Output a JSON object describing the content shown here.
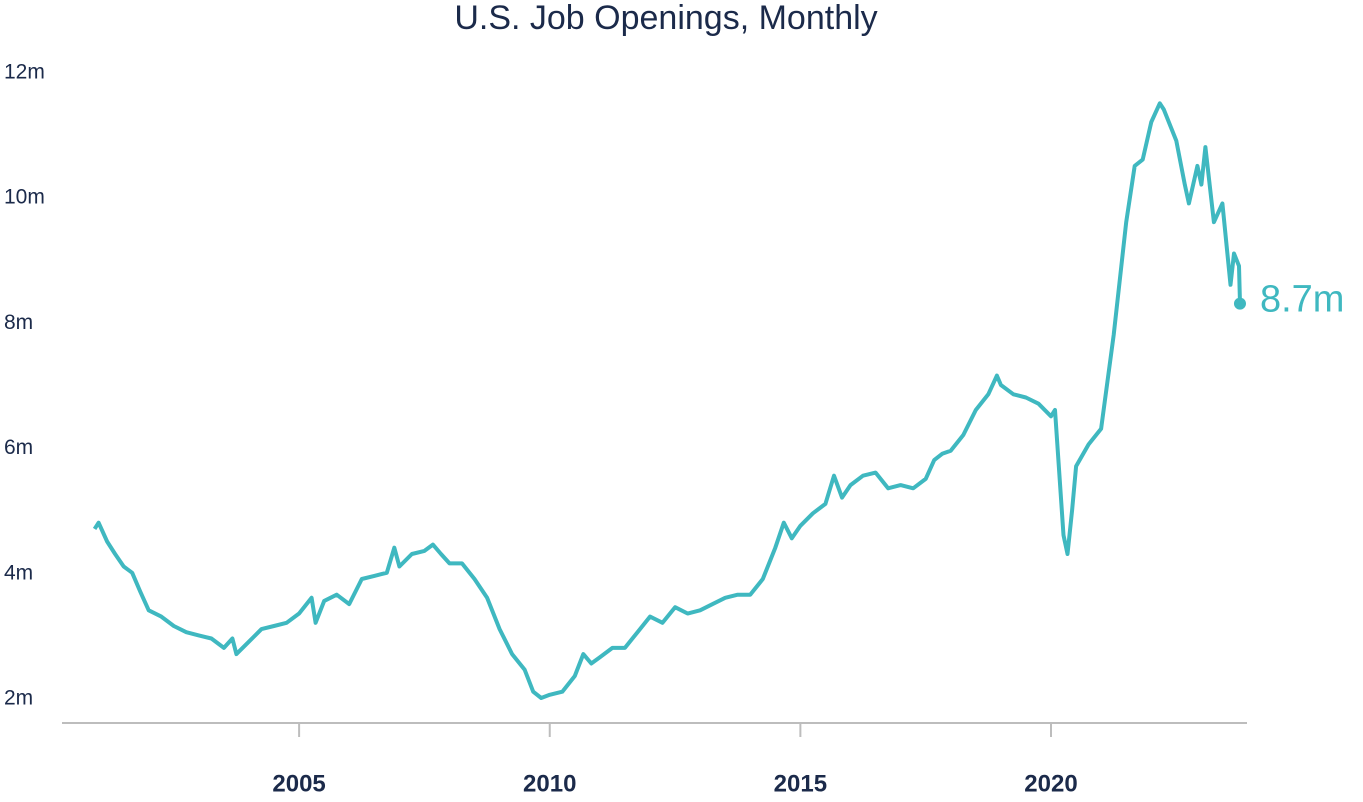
{
  "chart_data": {
    "type": "line",
    "title": "U.S. Job Openings, Monthly",
    "color": "#3fb8c0",
    "x": [
      2000.92,
      2001.0,
      2001.17,
      2001.33,
      2001.5,
      2001.67,
      2001.83,
      2002.0,
      2002.25,
      2002.5,
      2002.75,
      2003.0,
      2003.25,
      2003.5,
      2003.67,
      2003.75,
      2004.0,
      2004.25,
      2004.5,
      2004.75,
      2005.0,
      2005.25,
      2005.33,
      2005.5,
      2005.75,
      2006.0,
      2006.25,
      2006.5,
      2006.75,
      2006.9,
      2007.0,
      2007.25,
      2007.5,
      2007.67,
      2007.83,
      2008.0,
      2008.25,
      2008.5,
      2008.75,
      2009.0,
      2009.25,
      2009.5,
      2009.67,
      2009.83,
      2010.0,
      2010.25,
      2010.5,
      2010.67,
      2010.83,
      2011.0,
      2011.25,
      2011.5,
      2011.75,
      2012.0,
      2012.25,
      2012.5,
      2012.75,
      2013.0,
      2013.25,
      2013.5,
      2013.75,
      2014.0,
      2014.25,
      2014.5,
      2014.67,
      2014.83,
      2015.0,
      2015.25,
      2015.5,
      2015.67,
      2015.83,
      2016.0,
      2016.25,
      2016.5,
      2016.75,
      2017.0,
      2017.25,
      2017.5,
      2017.67,
      2017.83,
      2018.0,
      2018.25,
      2018.5,
      2018.75,
      2018.92,
      2019.0,
      2019.25,
      2019.5,
      2019.75,
      2020.0,
      2020.08,
      2020.25,
      2020.33,
      2020.42,
      2020.5,
      2020.75,
      2021.0,
      2021.25,
      2021.5,
      2021.67,
      2021.83,
      2022.0,
      2022.17,
      2022.25,
      2022.5,
      2022.67,
      2022.75,
      2022.92,
      2023.0,
      2023.08,
      2023.25,
      2023.42,
      2023.58,
      2023.65,
      2023.75,
      2023.77
    ],
    "values": [
      5.1,
      5.2,
      4.9,
      4.7,
      4.5,
      4.4,
      4.1,
      3.8,
      3.7,
      3.55,
      3.45,
      3.4,
      3.35,
      3.2,
      3.35,
      3.1,
      3.3,
      3.5,
      3.55,
      3.6,
      3.75,
      4.0,
      3.6,
      3.95,
      4.05,
      3.9,
      4.3,
      4.35,
      4.4,
      4.8,
      4.5,
      4.7,
      4.75,
      4.85,
      4.7,
      4.55,
      4.55,
      4.3,
      4.0,
      3.5,
      3.1,
      2.85,
      2.5,
      2.4,
      2.45,
      2.5,
      2.75,
      3.1,
      2.95,
      3.05,
      3.2,
      3.2,
      3.45,
      3.7,
      3.6,
      3.85,
      3.75,
      3.8,
      3.9,
      4.0,
      4.05,
      4.05,
      4.3,
      4.8,
      5.2,
      4.95,
      5.15,
      5.35,
      5.5,
      5.95,
      5.6,
      5.8,
      5.95,
      6.0,
      5.75,
      5.8,
      5.75,
      5.9,
      6.2,
      6.3,
      6.35,
      6.6,
      7.0,
      7.25,
      7.55,
      7.4,
      7.25,
      7.2,
      7.1,
      6.9,
      7.0,
      5.0,
      4.7,
      5.4,
      6.1,
      6.45,
      6.7,
      8.2,
      10.0,
      10.9,
      11.0,
      11.6,
      11.9,
      11.8,
      11.3,
      10.6,
      10.3,
      10.9,
      10.6,
      11.2,
      10.0,
      10.3,
      9.0,
      9.5,
      9.3,
      8.7
    ],
    "end_label": "8.7m",
    "xlim": [
      2000.27,
      2023.91
    ],
    "xticks": [
      2005,
      2010,
      2015,
      2020
    ],
    "ylim": [
      2,
      12
    ],
    "yticks": [
      {
        "value": 2,
        "label": "2m"
      },
      {
        "value": 4,
        "label": "4m"
      },
      {
        "value": 6,
        "label": "6m"
      },
      {
        "value": 8,
        "label": "8m"
      },
      {
        "value": 10,
        "label": "10m"
      },
      {
        "value": 12,
        "label": "12m"
      }
    ],
    "grid": false
  }
}
